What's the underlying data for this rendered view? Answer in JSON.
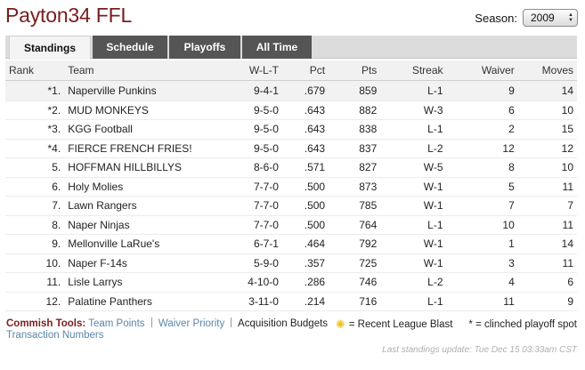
{
  "header": {
    "title": "Payton34 FFL",
    "season_label": "Season:",
    "season_value": "2009"
  },
  "tabs": [
    {
      "label": "Standings",
      "active": true
    },
    {
      "label": "Schedule",
      "active": false
    },
    {
      "label": "Playoffs",
      "active": false
    },
    {
      "label": "All Time",
      "active": false
    }
  ],
  "table": {
    "columns": {
      "rank": "Rank",
      "team": "Team",
      "wlt": "W-L-T",
      "pct": "Pct",
      "pts": "Pts",
      "streak": "Streak",
      "waiver": "Waiver",
      "moves": "Moves"
    },
    "rows": [
      {
        "rank": "*1.",
        "team": "Naperville Punkins",
        "wlt": "9-4-1",
        "pct": ".679",
        "pts": "859",
        "streak": "L-1",
        "waiver": "9",
        "moves": "14"
      },
      {
        "rank": "*2.",
        "team": "MUD MONKEYS",
        "wlt": "9-5-0",
        "pct": ".643",
        "pts": "882",
        "streak": "W-3",
        "waiver": "6",
        "moves": "10"
      },
      {
        "rank": "*3.",
        "team": "KGG Football",
        "wlt": "9-5-0",
        "pct": ".643",
        "pts": "838",
        "streak": "L-1",
        "waiver": "2",
        "moves": "15"
      },
      {
        "rank": "*4.",
        "team": "FIERCE FRENCH FRIES!",
        "wlt": "9-5-0",
        "pct": ".643",
        "pts": "837",
        "streak": "L-2",
        "waiver": "12",
        "moves": "12"
      },
      {
        "rank": "5.",
        "team": "HOFFMAN HILLBILLYS",
        "wlt": "8-6-0",
        "pct": ".571",
        "pts": "827",
        "streak": "W-5",
        "waiver": "8",
        "moves": "10"
      },
      {
        "rank": "6.",
        "team": "Holy Molies",
        "wlt": "7-7-0",
        "pct": ".500",
        "pts": "873",
        "streak": "W-1",
        "waiver": "5",
        "moves": "11"
      },
      {
        "rank": "7.",
        "team": "Lawn Rangers",
        "wlt": "7-7-0",
        "pct": ".500",
        "pts": "785",
        "streak": "W-1",
        "waiver": "7",
        "moves": "7"
      },
      {
        "rank": "8.",
        "team": "Naper Ninjas",
        "wlt": "7-7-0",
        "pct": ".500",
        "pts": "764",
        "streak": "L-1",
        "waiver": "10",
        "moves": "11"
      },
      {
        "rank": "9.",
        "team": "Mellonville LaRue's",
        "wlt": "6-7-1",
        "pct": ".464",
        "pts": "792",
        "streak": "W-1",
        "waiver": "1",
        "moves": "14"
      },
      {
        "rank": "10.",
        "team": "Naper F-14s",
        "wlt": "5-9-0",
        "pct": ".357",
        "pts": "725",
        "streak": "W-1",
        "waiver": "3",
        "moves": "11"
      },
      {
        "rank": "11.",
        "team": "Lisle Larrys",
        "wlt": "4-10-0",
        "pct": ".286",
        "pts": "746",
        "streak": "L-2",
        "waiver": "4",
        "moves": "6"
      },
      {
        "rank": "12.",
        "team": "Palatine Panthers",
        "wlt": "3-11-0",
        "pct": ".214",
        "pts": "716",
        "streak": "L-1",
        "waiver": "11",
        "moves": "9"
      }
    ]
  },
  "tools": {
    "label": "Commish Tools:",
    "team_points": "Team Points",
    "waiver_priority": "Waiver Priority",
    "acquisition_budgets": "Acquisition Budgets",
    "transaction_numbers": "Transaction Numbers"
  },
  "legend": {
    "star_icon": "star-icon",
    "blast_text": "= Recent League Blast",
    "clinched_text": "* = clinched playoff spot"
  },
  "footer": {
    "last_update": "Last standings update: Tue Dec 15 03:33am CST"
  },
  "colors": {
    "title": "#7a1d1d",
    "link": "#5b86a8",
    "tab_dark": "#555555"
  }
}
